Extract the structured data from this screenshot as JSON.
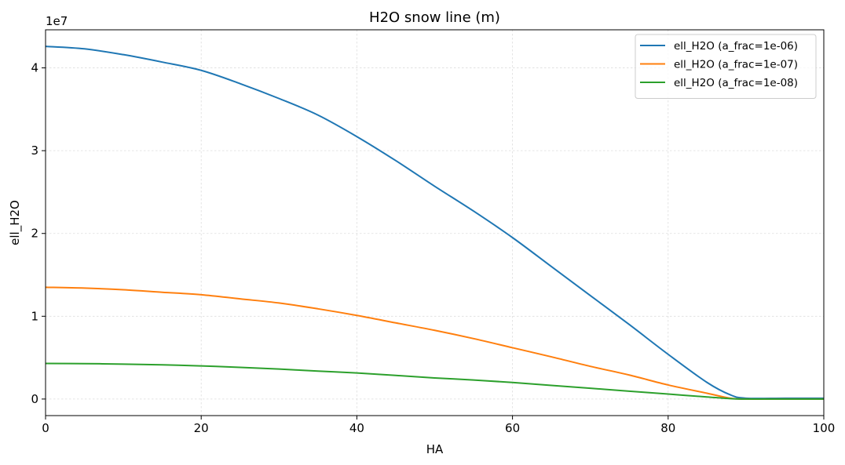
{
  "chart_data": {
    "type": "line",
    "title": "H2O snow line (m)",
    "xlabel": "HA",
    "ylabel": "ell_H2O",
    "y_offset_label": "1e7",
    "xlim": [
      0,
      100
    ],
    "ylim": [
      -2000000,
      44600000
    ],
    "xticks": [
      0,
      20,
      40,
      60,
      80,
      100
    ],
    "xtick_labels": [
      "0",
      "20",
      "40",
      "60",
      "80",
      "100"
    ],
    "yticks": [
      0,
      10000000,
      20000000,
      30000000,
      40000000
    ],
    "ytick_labels": [
      "0",
      "1",
      "2",
      "3",
      "4"
    ],
    "grid": true,
    "legend_position": "top-right",
    "x": [
      0,
      5,
      10,
      15,
      20,
      25,
      30,
      35,
      40,
      45,
      50,
      55,
      60,
      65,
      70,
      75,
      80,
      85,
      88,
      90,
      95,
      100
    ],
    "series": [
      {
        "name": "ell_H2O (a_frac=1e-06)",
        "color": "#1f77b4",
        "values": [
          42600000,
          42300000,
          41600000,
          40700000,
          39700000,
          38100000,
          36300000,
          34300000,
          31700000,
          28800000,
          25700000,
          22700000,
          19500000,
          16000000,
          12500000,
          9000000,
          5400000,
          2000000,
          500000,
          100000,
          100000,
          100000
        ]
      },
      {
        "name": "ell_H2O (a_frac=1e-07)",
        "color": "#ff7f0e",
        "values": [
          13500000,
          13400000,
          13200000,
          12900000,
          12600000,
          12100000,
          11600000,
          10900000,
          10100000,
          9200000,
          8300000,
          7300000,
          6200000,
          5100000,
          3950000,
          2900000,
          1700000,
          700000,
          100000,
          0,
          0,
          0
        ]
      },
      {
        "name": "ell_H2O (a_frac=1e-08)",
        "color": "#2ca02c",
        "values": [
          4300000,
          4280000,
          4220000,
          4130000,
          4000000,
          3830000,
          3620000,
          3380000,
          3150000,
          2850000,
          2550000,
          2300000,
          2000000,
          1650000,
          1300000,
          950000,
          600000,
          250000,
          50000,
          0,
          0,
          0
        ]
      }
    ]
  }
}
